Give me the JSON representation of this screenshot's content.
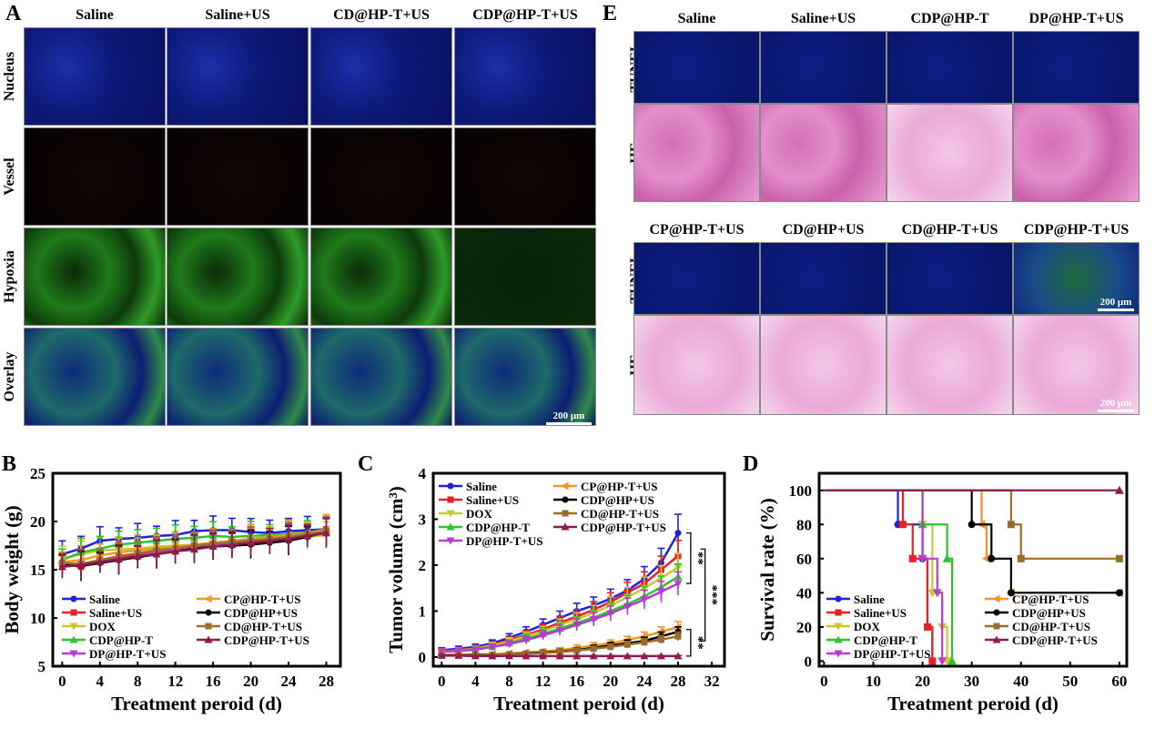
{
  "panelA": {
    "letter": "A",
    "columns": [
      "Saline",
      "Saline+US",
      "CD@HP-T+US",
      "CDP@HP-T+US"
    ],
    "rows": [
      "Nucleus",
      "Vessel",
      "Hypoxia",
      "Overlay"
    ],
    "scale": "200 μm"
  },
  "panelE": {
    "letter": "E",
    "top_columns": [
      "Saline",
      "Saline+US",
      "CDP@HP-T",
      "DP@HP-T+US"
    ],
    "bottom_columns": [
      "CP@HP-T+US",
      "CD@HP+US",
      "CD@HP-T+US",
      "CDP@HP-T+US"
    ],
    "rows": [
      "TUNEL",
      "HE"
    ],
    "scale": "200 μm"
  },
  "chart_data": [
    {
      "panel": "B",
      "type": "line",
      "xlabel": "Treatment peroid (d)",
      "ylabel": "Body weight (g)",
      "xlim": [
        -1,
        29.5
      ],
      "ylim": [
        5,
        25
      ],
      "xticks": [
        0,
        4,
        8,
        12,
        16,
        20,
        24,
        28
      ],
      "yticks": [
        5,
        10,
        15,
        20,
        25
      ],
      "legend_position": "bottom",
      "x": [
        0,
        2,
        4,
        6,
        8,
        10,
        12,
        14,
        16,
        18,
        20,
        22,
        24,
        26,
        28
      ],
      "series": [
        {
          "name": "Saline",
          "color": "#1f22d6",
          "marker": "circle",
          "values": [
            16.6,
            17.2,
            18.0,
            18.2,
            18.3,
            18.5,
            18.6,
            19.0,
            19.1,
            19.1,
            18.9,
            18.8,
            19.0,
            19.1,
            19.2
          ]
        },
        {
          "name": "Saline+US",
          "color": "#e8202a",
          "marker": "square",
          "values": [
            15.6,
            15.3,
            15.9,
            16.2,
            16.5,
            16.8,
            17.0,
            17.4,
            17.6,
            17.8,
            17.9,
            18.1,
            18.3,
            18.6,
            19.2
          ]
        },
        {
          "name": "DOX",
          "color": "#c9c92b",
          "marker": "triangle-down",
          "values": [
            16.2,
            16.6,
            17.0,
            17.1,
            17.2,
            17.4,
            17.5,
            17.6,
            17.7,
            17.8,
            17.9,
            18.0,
            18.2,
            18.4,
            18.6
          ]
        },
        {
          "name": "CDP@HP-T",
          "color": "#2bc42b",
          "marker": "triangle",
          "values": [
            16.0,
            16.8,
            17.2,
            17.6,
            17.8,
            18.0,
            18.2,
            18.3,
            18.5,
            18.4,
            18.5,
            18.6,
            18.7,
            18.9,
            19.0
          ]
        },
        {
          "name": "DP@HP-T+US",
          "color": "#b63cd0",
          "marker": "triangle-down",
          "values": [
            15.4,
            15.6,
            15.8,
            16.0,
            16.4,
            16.8,
            17.0,
            17.3,
            17.6,
            17.8,
            18.0,
            18.1,
            18.3,
            18.6,
            18.8
          ]
        },
        {
          "name": "CP@HP-T+US",
          "color": "#f0962a",
          "marker": "triangle-left",
          "values": [
            15.8,
            16.0,
            16.5,
            16.8,
            17.0,
            17.2,
            17.4,
            17.6,
            17.8,
            18.0,
            18.2,
            18.4,
            18.6,
            18.8,
            19.2
          ]
        },
        {
          "name": "CDP@HP+US",
          "color": "#000000",
          "marker": "circle",
          "values": [
            15.5,
            15.4,
            15.7,
            16.0,
            16.3,
            16.6,
            16.9,
            17.2,
            17.4,
            17.5,
            17.6,
            17.8,
            18.0,
            18.4,
            18.9
          ]
        },
        {
          "name": "CD@HP-T+US",
          "color": "#9a6d2a",
          "marker": "square",
          "values": [
            15.7,
            15.6,
            16.0,
            16.4,
            16.7,
            17.0,
            17.2,
            17.5,
            17.7,
            17.9,
            18.0,
            18.2,
            18.4,
            18.7,
            19.0
          ]
        },
        {
          "name": "CDP@HP-T+US",
          "color": "#8e1b50",
          "marker": "triangle",
          "values": [
            15.3,
            15.5,
            15.8,
            16.1,
            16.4,
            16.6,
            16.9,
            17.1,
            17.4,
            17.6,
            17.8,
            18.0,
            18.2,
            18.5,
            18.8
          ]
        }
      ]
    },
    {
      "panel": "C",
      "type": "line",
      "xlabel": "Treatment peroid (d)",
      "ylabel": "Tumor volume (cm³)",
      "xlim": [
        -1,
        33.5
      ],
      "ylim": [
        -0.2,
        4
      ],
      "xticks": [
        0,
        4,
        8,
        12,
        16,
        20,
        24,
        28,
        32
      ],
      "yticks": [
        0,
        1,
        2,
        3,
        4
      ],
      "legend_position": "top",
      "significance": [
        "**",
        "***",
        "**"
      ],
      "x": [
        0,
        2,
        4,
        6,
        8,
        10,
        12,
        14,
        16,
        18,
        20,
        22,
        24,
        26,
        28
      ],
      "series": [
        {
          "name": "Saline",
          "color": "#1f22d6",
          "marker": "circle",
          "values": [
            0.15,
            0.18,
            0.22,
            0.3,
            0.42,
            0.55,
            0.7,
            0.85,
            1.0,
            1.12,
            1.27,
            1.45,
            1.7,
            2.05,
            2.7
          ]
        },
        {
          "name": "Saline+US",
          "color": "#e8202a",
          "marker": "square",
          "values": [
            0.13,
            0.15,
            0.19,
            0.27,
            0.37,
            0.48,
            0.6,
            0.75,
            0.88,
            1.03,
            1.2,
            1.4,
            1.6,
            1.9,
            2.2
          ]
        },
        {
          "name": "DOX",
          "color": "#c9c92b",
          "marker": "triangle-down",
          "values": [
            0.12,
            0.14,
            0.18,
            0.25,
            0.34,
            0.45,
            0.56,
            0.7,
            0.82,
            0.96,
            1.12,
            1.3,
            1.5,
            1.72,
            1.95
          ]
        },
        {
          "name": "CDP@HP-T",
          "color": "#2bc42b",
          "marker": "triangle",
          "values": [
            0.12,
            0.13,
            0.17,
            0.22,
            0.3,
            0.4,
            0.5,
            0.62,
            0.74,
            0.86,
            1.0,
            1.15,
            1.32,
            1.52,
            1.75
          ]
        },
        {
          "name": "DP@HP-T+US",
          "color": "#b63cd0",
          "marker": "triangle-down",
          "values": [
            0.12,
            0.13,
            0.16,
            0.22,
            0.28,
            0.37,
            0.47,
            0.58,
            0.7,
            0.82,
            0.95,
            1.1,
            1.25,
            1.42,
            1.6
          ]
        },
        {
          "name": "CP@HP-T+US",
          "color": "#f0962a",
          "marker": "triangle-left",
          "values": [
            0.05,
            0.05,
            0.05,
            0.06,
            0.08,
            0.1,
            0.12,
            0.15,
            0.2,
            0.25,
            0.3,
            0.37,
            0.45,
            0.55,
            0.65
          ]
        },
        {
          "name": "CDP@HP+US",
          "color": "#000000",
          "marker": "circle",
          "values": [
            0.04,
            0.04,
            0.05,
            0.05,
            0.06,
            0.08,
            0.1,
            0.12,
            0.15,
            0.2,
            0.25,
            0.3,
            0.35,
            0.45,
            0.55
          ]
        },
        {
          "name": "CD@HP-T+US",
          "color": "#9a6d2a",
          "marker": "square",
          "values": [
            0.04,
            0.04,
            0.04,
            0.05,
            0.06,
            0.07,
            0.09,
            0.11,
            0.14,
            0.18,
            0.22,
            0.27,
            0.32,
            0.38,
            0.45
          ]
        },
        {
          "name": "CDP@HP-T+US",
          "color": "#8e1b50",
          "marker": "triangle",
          "values": [
            0.03,
            0.03,
            0.02,
            0.02,
            0.02,
            0.02,
            0.02,
            0.02,
            0.02,
            0.02,
            0.02,
            0.02,
            0.02,
            0.02,
            0.02
          ]
        }
      ]
    },
    {
      "panel": "D",
      "type": "line",
      "xlabel": "Treatment peroid (d)",
      "ylabel": "Survival rate (%)",
      "xlim": [
        -1,
        61.5
      ],
      "ylim": [
        -3,
        110
      ],
      "xticks": [
        0,
        10,
        20,
        30,
        40,
        50,
        60
      ],
      "yticks": [
        0,
        20,
        40,
        60,
        80,
        100
      ],
      "legend_position": "bottom",
      "series": [
        {
          "name": "Saline",
          "color": "#1f22d6",
          "marker": "circle",
          "x": [
            0,
            15,
            15,
            20,
            20,
            21,
            21,
            22,
            22
          ],
          "values": [
            100,
            100,
            80,
            80,
            60,
            60,
            20,
            20,
            0
          ]
        },
        {
          "name": "Saline+US",
          "color": "#e8202a",
          "marker": "square",
          "x": [
            0,
            16,
            16,
            18,
            18,
            21,
            21,
            22,
            22
          ],
          "values": [
            100,
            100,
            80,
            80,
            60,
            60,
            20,
            20,
            0
          ]
        },
        {
          "name": "DOX",
          "color": "#c9c92b",
          "marker": "triangle-down",
          "x": [
            0,
            20,
            20,
            22,
            22,
            24,
            24,
            25,
            25
          ],
          "values": [
            100,
            100,
            80,
            80,
            40,
            40,
            20,
            20,
            0
          ]
        },
        {
          "name": "CDP@HP-T",
          "color": "#2bc42b",
          "marker": "triangle",
          "x": [
            0,
            20,
            20,
            25,
            25,
            26,
            26
          ],
          "values": [
            100,
            100,
            80,
            80,
            60,
            60,
            0
          ]
        },
        {
          "name": "DP@HP-T+US",
          "color": "#b63cd0",
          "marker": "triangle-down",
          "x": [
            0,
            20,
            20,
            23,
            23,
            24,
            24
          ],
          "values": [
            100,
            100,
            60,
            60,
            40,
            40,
            0
          ]
        },
        {
          "name": "CP@HP-T+US",
          "color": "#f0962a",
          "marker": "triangle-left",
          "x": [
            0,
            32,
            32,
            33,
            33,
            38,
            38,
            60
          ],
          "values": [
            100,
            100,
            80,
            80,
            60,
            60,
            40,
            40
          ]
        },
        {
          "name": "CDP@HP+US",
          "color": "#000000",
          "marker": "circle",
          "x": [
            0,
            30,
            30,
            34,
            34,
            37,
            37,
            38,
            38,
            60
          ],
          "values": [
            100,
            100,
            80,
            80,
            60,
            60,
            60,
            60,
            40,
            40
          ]
        },
        {
          "name": "CD@HP-T+US",
          "color": "#9a6d2a",
          "marker": "square",
          "x": [
            0,
            38,
            38,
            40,
            40,
            60
          ],
          "values": [
            100,
            100,
            80,
            80,
            60,
            60
          ]
        },
        {
          "name": "CDP@HP-T+US",
          "color": "#8e1b50",
          "marker": "triangle",
          "x": [
            0,
            60
          ],
          "values": [
            100,
            100
          ]
        }
      ]
    }
  ]
}
